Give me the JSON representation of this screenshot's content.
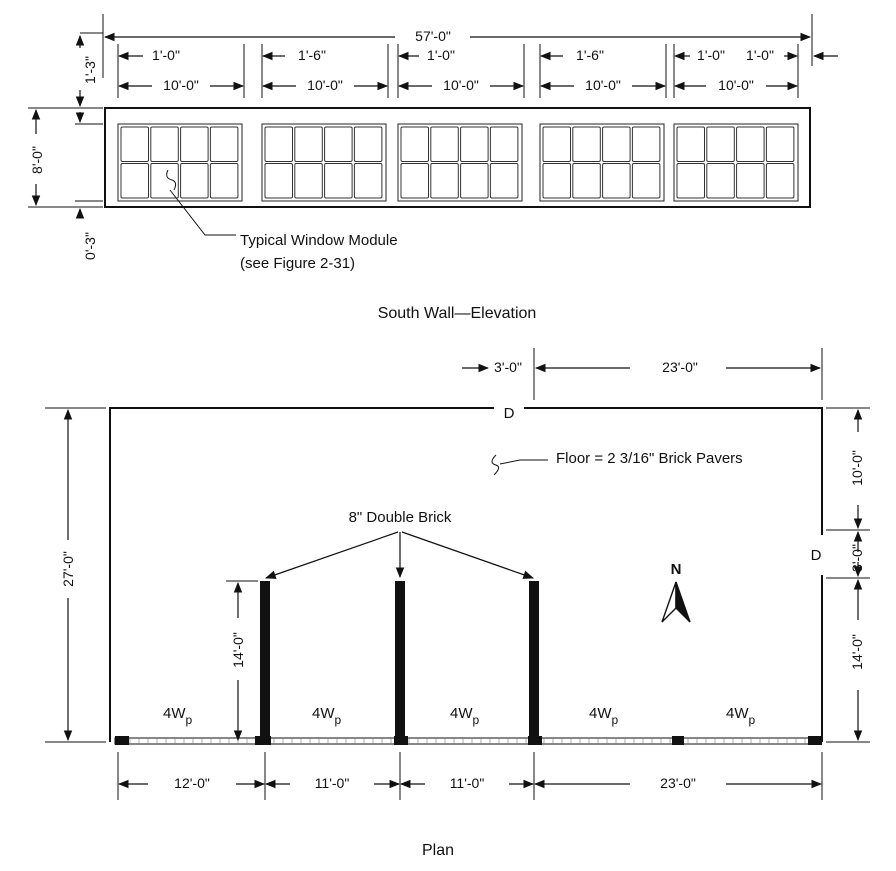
{
  "elevation": {
    "overall_width": "57'-0\"",
    "top_offset": "1'-3\"",
    "height": "8'-0\"",
    "bottom_offset": "0'-3\"",
    "gap_dims": [
      "1'-0\"",
      "1'-6\"",
      "1'-0\"",
      "1'-6\"",
      "1'-0\"",
      "1'-0\""
    ],
    "module_dims": [
      "10'-0\"",
      "10'-0\"",
      "10'-0\"",
      "10'-0\"",
      "10'-0\""
    ],
    "callout_line1": "Typical Window Module",
    "callout_line2": "(see Figure 2-31)",
    "caption": "South Wall—Elevation"
  },
  "plan": {
    "door_offset": "3'-0\"",
    "door_to_corner": "23'-0\"",
    "door_symbol": "D",
    "east_door_symbol": "D",
    "depth": "27'-0\"",
    "right_top": "10'-0\"",
    "right_door": "3'-0\"",
    "right_bottom": "14'-0\"",
    "floor_note": "Floor = 2 3/16\" Brick Pavers",
    "brick_label": "8\" Double Brick",
    "wall_height": "14'-0\"",
    "north_symbol": "N",
    "window_label_main": "4W",
    "window_label_sub": "p",
    "bottom_dims": [
      "12'-0\"",
      "11'-0\"",
      "11'-0\"",
      "23'-0\""
    ],
    "caption": "Plan"
  }
}
